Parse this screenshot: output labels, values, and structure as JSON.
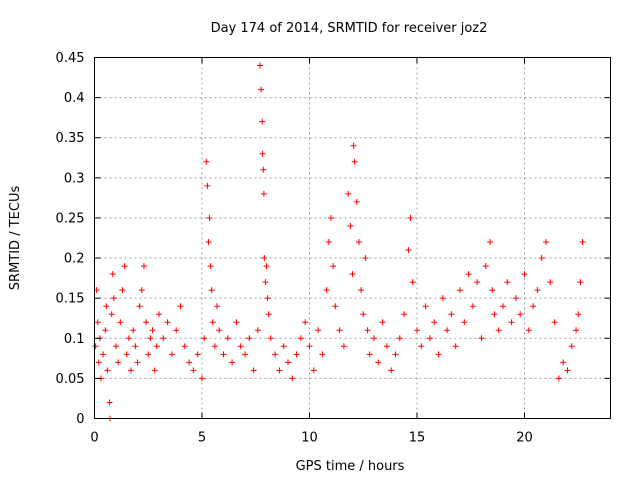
{
  "chart_data": {
    "type": "scatter",
    "title": "Day 174 of 2014, SRMTID for receiver joz2",
    "xlabel": "GPS time / hours",
    "ylabel": "SRMTID / TECUs",
    "xlim": [
      0,
      24
    ],
    "ylim": [
      0,
      0.45
    ],
    "xticks": [
      0,
      5,
      10,
      15,
      20
    ],
    "xtick_labels": [
      "0",
      "5",
      "10",
      "15",
      "20"
    ],
    "yticks": [
      0,
      0.05,
      0.1,
      0.15,
      0.2,
      0.25,
      0.3,
      0.35,
      0.4,
      0.45
    ],
    "ytick_labels": [
      "0",
      "0.05",
      "0.1",
      "0.15",
      "0.2",
      "0.25",
      "0.3",
      "0.35",
      "0.4",
      "0.45"
    ],
    "grid": true,
    "marker": "+",
    "color": "#ff0000",
    "series": [
      {
        "name": "joz2",
        "x": [
          0.05,
          0.1,
          0.15,
          0.2,
          0.25,
          0.3,
          0.4,
          0.5,
          0.55,
          0.6,
          0.7,
          0.72,
          0.8,
          0.85,
          0.9,
          1.0,
          1.1,
          1.2,
          1.3,
          1.4,
          1.5,
          1.6,
          1.7,
          1.8,
          1.9,
          2.0,
          2.1,
          2.2,
          2.3,
          2.4,
          2.5,
          2.6,
          2.7,
          2.8,
          2.9,
          3.0,
          3.2,
          3.4,
          3.6,
          3.8,
          4.0,
          4.2,
          4.4,
          4.6,
          4.8,
          5.0,
          5.1,
          5.2,
          5.25,
          5.3,
          5.35,
          5.4,
          5.45,
          5.5,
          5.6,
          5.7,
          5.8,
          6.0,
          6.2,
          6.4,
          6.6,
          6.8,
          7.0,
          7.2,
          7.4,
          7.6,
          7.7,
          7.75,
          7.8,
          7.82,
          7.85,
          7.88,
          7.9,
          7.95,
          8.0,
          8.05,
          8.1,
          8.2,
          8.4,
          8.6,
          8.8,
          9.0,
          9.2,
          9.4,
          9.6,
          9.8,
          10.0,
          10.2,
          10.4,
          10.6,
          10.8,
          10.9,
          11.0,
          11.1,
          11.2,
          11.4,
          11.6,
          11.8,
          11.9,
          12.0,
          12.05,
          12.1,
          12.2,
          12.3,
          12.4,
          12.5,
          12.6,
          12.7,
          12.8,
          13.0,
          13.2,
          13.4,
          13.6,
          13.8,
          14.0,
          14.2,
          14.4,
          14.6,
          14.7,
          14.8,
          15.0,
          15.2,
          15.4,
          15.6,
          15.8,
          16.0,
          16.2,
          16.4,
          16.6,
          16.8,
          17.0,
          17.2,
          17.4,
          17.6,
          17.8,
          18.0,
          18.2,
          18.4,
          18.5,
          18.6,
          18.8,
          19.0,
          19.2,
          19.4,
          19.6,
          19.8,
          20.0,
          20.2,
          20.4,
          20.6,
          20.8,
          21.0,
          21.2,
          21.4,
          21.6,
          21.8,
          22.0,
          22.2,
          22.4,
          22.5,
          22.6,
          22.7
        ],
        "y": [
          0.09,
          0.16,
          0.12,
          0.07,
          0.1,
          0.05,
          0.08,
          0.11,
          0.14,
          0.06,
          0.02,
          0.0,
          0.13,
          0.18,
          0.15,
          0.09,
          0.07,
          0.12,
          0.16,
          0.19,
          0.08,
          0.1,
          0.06,
          0.11,
          0.09,
          0.07,
          0.14,
          0.16,
          0.19,
          0.12,
          0.08,
          0.1,
          0.11,
          0.06,
          0.09,
          0.13,
          0.1,
          0.12,
          0.08,
          0.11,
          0.14,
          0.09,
          0.07,
          0.06,
          0.08,
          0.05,
          0.1,
          0.32,
          0.29,
          0.22,
          0.25,
          0.19,
          0.16,
          0.12,
          0.09,
          0.14,
          0.11,
          0.08,
          0.1,
          0.07,
          0.12,
          0.09,
          0.08,
          0.1,
          0.06,
          0.11,
          0.44,
          0.41,
          0.37,
          0.33,
          0.31,
          0.28,
          0.2,
          0.17,
          0.19,
          0.15,
          0.13,
          0.1,
          0.08,
          0.06,
          0.09,
          0.07,
          0.05,
          0.08,
          0.1,
          0.12,
          0.09,
          0.06,
          0.11,
          0.08,
          0.16,
          0.22,
          0.25,
          0.19,
          0.14,
          0.11,
          0.09,
          0.28,
          0.24,
          0.18,
          0.34,
          0.32,
          0.27,
          0.22,
          0.16,
          0.13,
          0.2,
          0.11,
          0.08,
          0.1,
          0.07,
          0.12,
          0.09,
          0.06,
          0.08,
          0.1,
          0.13,
          0.21,
          0.25,
          0.17,
          0.11,
          0.09,
          0.14,
          0.1,
          0.12,
          0.08,
          0.15,
          0.11,
          0.13,
          0.09,
          0.16,
          0.12,
          0.18,
          0.14,
          0.17,
          0.1,
          0.19,
          0.22,
          0.16,
          0.13,
          0.11,
          0.14,
          0.17,
          0.12,
          0.15,
          0.13,
          0.18,
          0.11,
          0.14,
          0.16,
          0.2,
          0.22,
          0.17,
          0.12,
          0.05,
          0.07,
          0.06,
          0.09,
          0.11,
          0.13,
          0.17,
          0.22
        ]
      }
    ]
  }
}
